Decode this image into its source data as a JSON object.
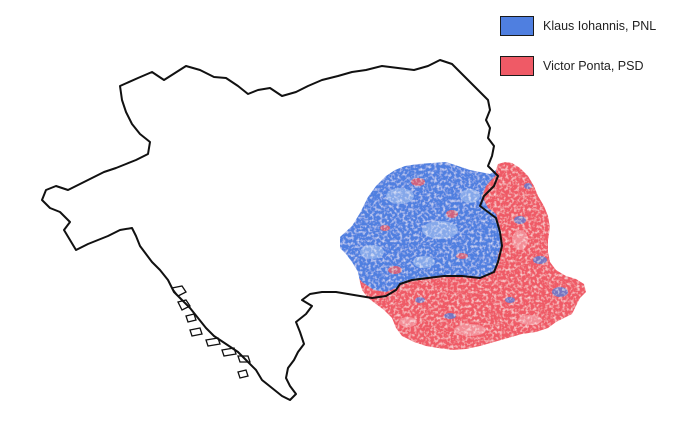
{
  "legend": {
    "items": [
      {
        "label": "Klaus Iohannis, PNL",
        "color": "#4f7fe0"
      },
      {
        "label": "Victor Ponta, PSD",
        "color": "#ef5a66"
      }
    ]
  },
  "map": {
    "outline_region": "Austria-Hungary",
    "shaded_region": "Romania",
    "outline_color": "#111111",
    "colors": {
      "iohannis": "#4f7fe0",
      "iohannis_light": "#8fb0ec",
      "ponta": "#ef5a66",
      "ponta_light": "#f49aa2"
    }
  }
}
